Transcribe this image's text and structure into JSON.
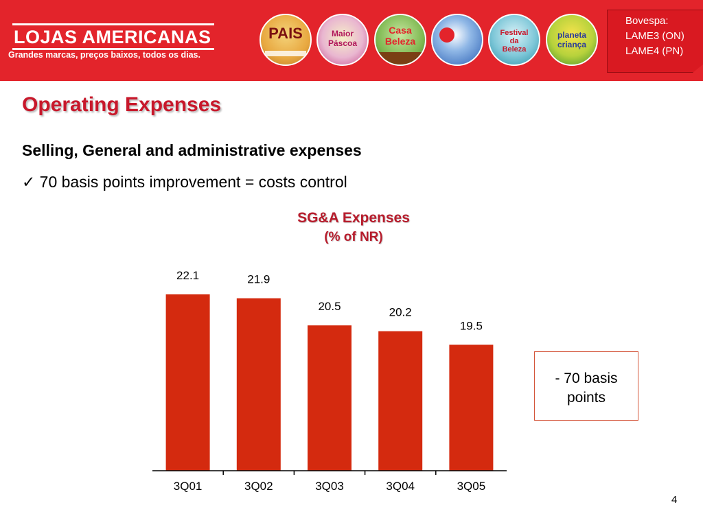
{
  "header": {
    "logo_title": "LOJAS AMERICANAS",
    "logo_tagline": "Grandes marcas, preços baixos, todos os dias.",
    "badges": [
      {
        "text": "PAIS",
        "label": "dia dos pais badge"
      },
      {
        "text": "Maior Páscoa",
        "label": "maior pascoa badge"
      },
      {
        "text": "Casa Beleza",
        "label": "casa beleza badge"
      },
      {
        "text": "",
        "label": "campaign badge"
      },
      {
        "text": "Festival da Beleza",
        "label": "festival da beleza badge"
      },
      {
        "text": "planeta criança",
        "label": "planeta crianca badge"
      }
    ],
    "bovespa": {
      "line1": "Bovespa:",
      "line2": "LAME3 (ON)",
      "line3": "LAME4 (PN)"
    }
  },
  "slide": {
    "title": "Operating Expenses",
    "subhead": "Selling, General and administrative expenses",
    "bullet_mark": "✓",
    "bullet_text": "70 basis points improvement = costs control",
    "callout_line1": "- 70 basis",
    "callout_line2": "points",
    "page_number": "4"
  },
  "colors": {
    "header_red": "#e3242b",
    "bar_fill": "#d42a0f",
    "title_red": "#c8182b"
  },
  "chart_data": {
    "type": "bar",
    "title": "SG&A Expenses",
    "subtitle": "(% of NR)",
    "categories": [
      "3Q01",
      "3Q02",
      "3Q03",
      "3Q04",
      "3Q05"
    ],
    "values": [
      22.1,
      21.9,
      20.5,
      20.2,
      19.5
    ],
    "xlabel": "",
    "ylabel": "",
    "ylim": [
      0,
      22.1
    ],
    "grid": false,
    "legend": "none",
    "data_labels": true
  }
}
